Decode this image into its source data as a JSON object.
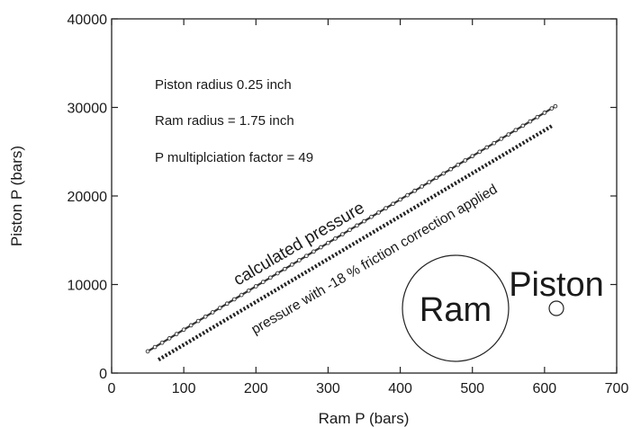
{
  "chart_data": {
    "type": "line",
    "xlabel": "Ram P (bars)",
    "ylabel": "Piston P (bars)",
    "xlim": [
      0,
      700
    ],
    "ylim": [
      0,
      40000
    ],
    "xticks": [
      0,
      100,
      200,
      300,
      400,
      500,
      600,
      700
    ],
    "yticks": [
      0,
      10000,
      20000,
      30000,
      40000
    ],
    "grid": false,
    "series": [
      {
        "name": "calculated pressure",
        "style": "solid line with small circle markers",
        "color": "#333333",
        "x_start": 50,
        "x_end": 615,
        "x_step": 10,
        "y_start": 2450,
        "y_end": 30135
      },
      {
        "name": "pressure with -18 % friction correction applied",
        "style": "dotted line",
        "color": "#222222",
        "x": [
          65,
          610
        ],
        "y": [
          1500,
          27900
        ]
      }
    ],
    "annotations": [
      "Piston radius 0.25 inch",
      "Ram radius = 1.75 inch",
      "P multiplciation factor = 49"
    ],
    "shape_labels": {
      "ram": "Ram",
      "piston": "Piston"
    }
  }
}
